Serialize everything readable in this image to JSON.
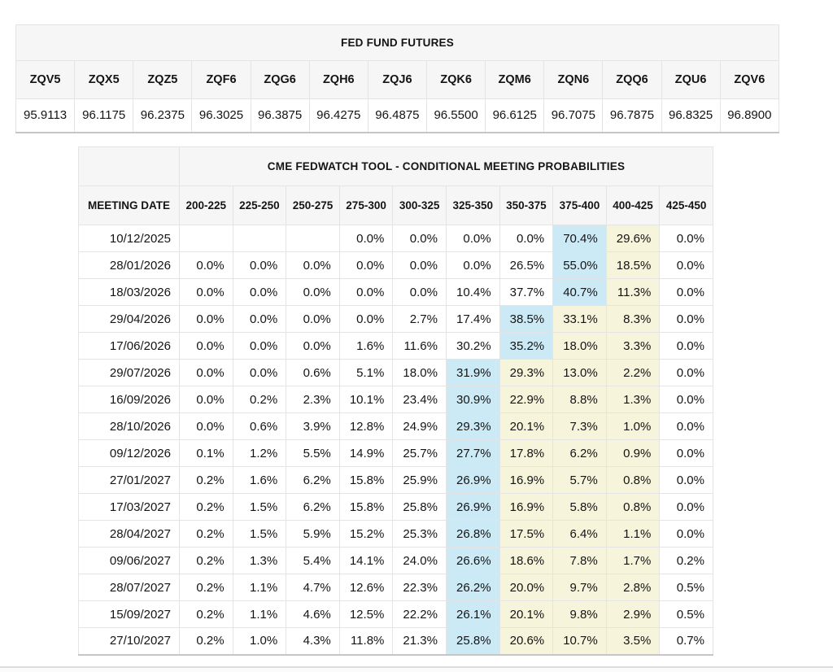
{
  "colors": {
    "highlight_blue": "#cbeaf5",
    "highlight_yellow": "#f6f4da",
    "header_background": "#f6f6f6"
  },
  "chart_data": [
    {
      "type": "table",
      "title": "FED FUND FUTURES",
      "columns": [
        "ZQV5",
        "ZQX5",
        "ZQZ5",
        "ZQF6",
        "ZQG6",
        "ZQH6",
        "ZQJ6",
        "ZQK6",
        "ZQM6",
        "ZQN6",
        "ZQQ6",
        "ZQU6",
        "ZQV6"
      ],
      "rows": [
        [
          "95.9113",
          "96.1175",
          "96.2375",
          "96.3025",
          "96.3875",
          "96.4275",
          "96.4875",
          "96.5500",
          "96.6125",
          "96.7075",
          "96.7875",
          "96.8325",
          "96.8900"
        ]
      ]
    },
    {
      "type": "table",
      "title": "CME FEDWATCH TOOL - CONDITIONAL MEETING PROBABILITIES",
      "columns": [
        "MEETING DATE",
        "200-225",
        "225-250",
        "250-275",
        "275-300",
        "300-325",
        "325-350",
        "350-375",
        "375-400",
        "400-425",
        "425-450"
      ],
      "rows": [
        {
          "date": "10/12/2025",
          "values": [
            "",
            "",
            "",
            "0.0%",
            "0.0%",
            "0.0%",
            "0.0%",
            "70.4%",
            "29.6%",
            "0.0%"
          ],
          "blue": 7,
          "yellow": [
            8
          ]
        },
        {
          "date": "28/01/2026",
          "values": [
            "0.0%",
            "0.0%",
            "0.0%",
            "0.0%",
            "0.0%",
            "0.0%",
            "26.5%",
            "55.0%",
            "18.5%",
            "0.0%"
          ],
          "blue": 7,
          "yellow": [
            8
          ]
        },
        {
          "date": "18/03/2026",
          "values": [
            "0.0%",
            "0.0%",
            "0.0%",
            "0.0%",
            "0.0%",
            "10.4%",
            "37.7%",
            "40.7%",
            "11.3%",
            "0.0%"
          ],
          "blue": 7,
          "yellow": [
            8
          ]
        },
        {
          "date": "29/04/2026",
          "values": [
            "0.0%",
            "0.0%",
            "0.0%",
            "0.0%",
            "2.7%",
            "17.4%",
            "38.5%",
            "33.1%",
            "8.3%",
            "0.0%"
          ],
          "blue": 6,
          "yellow": [
            7,
            8
          ]
        },
        {
          "date": "17/06/2026",
          "values": [
            "0.0%",
            "0.0%",
            "0.0%",
            "1.6%",
            "11.6%",
            "30.2%",
            "35.2%",
            "18.0%",
            "3.3%",
            "0.0%"
          ],
          "blue": 6,
          "yellow": [
            7,
            8
          ]
        },
        {
          "date": "29/07/2026",
          "values": [
            "0.0%",
            "0.0%",
            "0.6%",
            "5.1%",
            "18.0%",
            "31.9%",
            "29.3%",
            "13.0%",
            "2.2%",
            "0.0%"
          ],
          "blue": 5,
          "yellow": [
            6,
            7,
            8
          ]
        },
        {
          "date": "16/09/2026",
          "values": [
            "0.0%",
            "0.2%",
            "2.3%",
            "10.1%",
            "23.4%",
            "30.9%",
            "22.9%",
            "8.8%",
            "1.3%",
            "0.0%"
          ],
          "blue": 5,
          "yellow": [
            6,
            7,
            8
          ]
        },
        {
          "date": "28/10/2026",
          "values": [
            "0.0%",
            "0.6%",
            "3.9%",
            "12.8%",
            "24.9%",
            "29.3%",
            "20.1%",
            "7.3%",
            "1.0%",
            "0.0%"
          ],
          "blue": 5,
          "yellow": [
            6,
            7,
            8
          ]
        },
        {
          "date": "09/12/2026",
          "values": [
            "0.1%",
            "1.2%",
            "5.5%",
            "14.9%",
            "25.7%",
            "27.7%",
            "17.8%",
            "6.2%",
            "0.9%",
            "0.0%"
          ],
          "blue": 5,
          "yellow": [
            6,
            7,
            8
          ]
        },
        {
          "date": "27/01/2027",
          "values": [
            "0.2%",
            "1.6%",
            "6.2%",
            "15.8%",
            "25.9%",
            "26.9%",
            "16.9%",
            "5.7%",
            "0.8%",
            "0.0%"
          ],
          "blue": 5,
          "yellow": [
            6,
            7,
            8
          ]
        },
        {
          "date": "17/03/2027",
          "values": [
            "0.2%",
            "1.5%",
            "6.2%",
            "15.8%",
            "25.8%",
            "26.9%",
            "16.9%",
            "5.8%",
            "0.8%",
            "0.0%"
          ],
          "blue": 5,
          "yellow": [
            6,
            7,
            8
          ]
        },
        {
          "date": "28/04/2027",
          "values": [
            "0.2%",
            "1.5%",
            "5.9%",
            "15.2%",
            "25.3%",
            "26.8%",
            "17.5%",
            "6.4%",
            "1.1%",
            "0.0%"
          ],
          "blue": 5,
          "yellow": [
            6,
            7,
            8
          ]
        },
        {
          "date": "09/06/2027",
          "values": [
            "0.2%",
            "1.3%",
            "5.4%",
            "14.1%",
            "24.0%",
            "26.6%",
            "18.6%",
            "7.8%",
            "1.7%",
            "0.2%"
          ],
          "blue": 5,
          "yellow": [
            6,
            7,
            8
          ]
        },
        {
          "date": "28/07/2027",
          "values": [
            "0.2%",
            "1.1%",
            "4.7%",
            "12.6%",
            "22.3%",
            "26.2%",
            "20.0%",
            "9.7%",
            "2.8%",
            "0.5%"
          ],
          "blue": 5,
          "yellow": [
            6,
            7,
            8
          ]
        },
        {
          "date": "15/09/2027",
          "values": [
            "0.2%",
            "1.1%",
            "4.6%",
            "12.5%",
            "22.2%",
            "26.1%",
            "20.1%",
            "9.8%",
            "2.9%",
            "0.5%"
          ],
          "blue": 5,
          "yellow": [
            6,
            7,
            8
          ]
        },
        {
          "date": "27/10/2027",
          "values": [
            "0.2%",
            "1.0%",
            "4.3%",
            "11.8%",
            "21.3%",
            "25.8%",
            "20.6%",
            "10.7%",
            "3.5%",
            "0.7%"
          ],
          "blue": 5,
          "yellow": [
            6,
            7,
            8
          ]
        }
      ]
    }
  ]
}
